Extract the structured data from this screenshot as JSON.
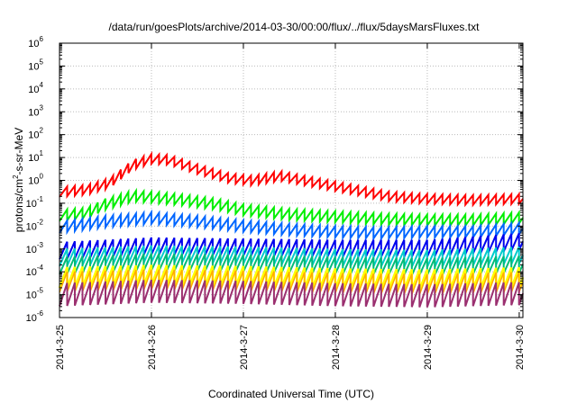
{
  "chart_data": {
    "type": "line",
    "title": "/data/run/goesPlots/archive/2014-03-30/00:00/flux/../flux/5daysMarsFluxes.txt",
    "xlabel": "Coordinated Universal Time (UTC)",
    "ylabel_main": "protons/cm",
    "ylabel_sup": "2",
    "ylabel_tail": "-s-sr-MeV",
    "y_scale": "log",
    "ylim_exp": [
      -6,
      6
    ],
    "y_ticks": [
      {
        "base": "10",
        "exp": "6",
        "value": 6
      },
      {
        "base": "10",
        "exp": "5",
        "value": 5
      },
      {
        "base": "10",
        "exp": "4",
        "value": 4
      },
      {
        "base": "10",
        "exp": "3",
        "value": 3
      },
      {
        "base": "10",
        "exp": "2",
        "value": 2
      },
      {
        "base": "10",
        "exp": "1",
        "value": 1
      },
      {
        "base": "10",
        "exp": "0",
        "value": 0
      },
      {
        "base": "10",
        "exp": "-1",
        "value": -1
      },
      {
        "base": "10",
        "exp": "-2",
        "value": -2
      },
      {
        "base": "10",
        "exp": "-3",
        "value": -3
      },
      {
        "base": "10",
        "exp": "-4",
        "value": -4
      },
      {
        "base": "10",
        "exp": "-5",
        "value": -5
      },
      {
        "base": "10",
        "exp": "-6",
        "value": -6
      }
    ],
    "x_range_days": [
      0,
      5.04
    ],
    "x_ticks": [
      {
        "label": "2014-3-25",
        "day": 0
      },
      {
        "label": "2014-3-26",
        "day": 1
      },
      {
        "label": "2014-3-27",
        "day": 2
      },
      {
        "label": "2014-3-28",
        "day": 3
      },
      {
        "label": "2014-3-29",
        "day": 4
      },
      {
        "label": "2014-3-30",
        "day": 5
      }
    ],
    "grid": true,
    "sawtooth_period_days": 0.0833,
    "series": [
      {
        "color": "#ff0000",
        "width": 2,
        "amp": 0.42,
        "anchors": [
          [
            0,
            -0.3
          ],
          [
            0.3,
            -0.2
          ],
          [
            0.55,
            0.1
          ],
          [
            0.8,
            0.9
          ],
          [
            1.0,
            1.15
          ],
          [
            1.2,
            1.1
          ],
          [
            1.5,
            0.7
          ],
          [
            1.85,
            0.3
          ],
          [
            2.1,
            0.2
          ],
          [
            2.4,
            0.4
          ],
          [
            2.8,
            0.1
          ],
          [
            3.2,
            -0.2
          ],
          [
            3.6,
            -0.5
          ],
          [
            4.0,
            -0.6
          ],
          [
            4.5,
            -0.65
          ],
          [
            5.04,
            -0.6
          ]
        ]
      },
      {
        "color": "#00ee00",
        "width": 2,
        "amp": 0.48,
        "anchors": [
          [
            0,
            -1.3
          ],
          [
            0.3,
            -1.2
          ],
          [
            0.5,
            -0.8
          ],
          [
            0.8,
            -0.45
          ],
          [
            1.0,
            -0.5
          ],
          [
            1.3,
            -0.6
          ],
          [
            1.7,
            -0.8
          ],
          [
            2.0,
            -1.05
          ],
          [
            2.5,
            -1.25
          ],
          [
            3.0,
            -1.35
          ],
          [
            3.5,
            -1.45
          ],
          [
            4.0,
            -1.5
          ],
          [
            4.5,
            -1.5
          ],
          [
            5.04,
            -1.4
          ]
        ]
      },
      {
        "color": "#0066ff",
        "width": 2,
        "amp": 0.5,
        "anchors": [
          [
            0,
            -1.8
          ],
          [
            0.5,
            -1.55
          ],
          [
            1.0,
            -1.4
          ],
          [
            1.5,
            -1.55
          ],
          [
            2.0,
            -1.75
          ],
          [
            2.5,
            -1.9
          ],
          [
            3.0,
            -2.0
          ],
          [
            3.5,
            -2.05
          ],
          [
            4.0,
            -2.0
          ],
          [
            4.5,
            -2.0
          ],
          [
            5.04,
            -1.85
          ]
        ]
      },
      {
        "color": "#0000ee",
        "width": 2,
        "amp": 0.75,
        "anchors": [
          [
            0,
            -2.7
          ],
          [
            1.0,
            -2.5
          ],
          [
            2.0,
            -2.55
          ],
          [
            3.0,
            -2.6
          ],
          [
            4.0,
            -2.6
          ],
          [
            5.04,
            -2.3
          ]
        ]
      },
      {
        "color": "#00cccc",
        "width": 2,
        "amp": 0.75,
        "anchors": [
          [
            0,
            -3.0
          ],
          [
            1.0,
            -2.85
          ],
          [
            2.0,
            -2.9
          ],
          [
            3.0,
            -3.0
          ],
          [
            4.0,
            -3.05
          ],
          [
            5.04,
            -2.9
          ]
        ]
      },
      {
        "color": "#00bb77",
        "width": 2,
        "amp": 0.75,
        "anchors": [
          [
            0,
            -3.35
          ],
          [
            1.0,
            -3.2
          ],
          [
            2.0,
            -3.25
          ],
          [
            3.0,
            -3.35
          ],
          [
            4.0,
            -3.4
          ],
          [
            5.04,
            -3.3
          ]
        ]
      },
      {
        "color": "#ffff00",
        "width": 2.5,
        "amp": 0.9,
        "anchors": [
          [
            0,
            -3.8
          ],
          [
            1.0,
            -3.7
          ],
          [
            2.0,
            -3.75
          ],
          [
            3.0,
            -3.85
          ],
          [
            4.0,
            -3.9
          ],
          [
            5.04,
            -3.8
          ]
        ]
      },
      {
        "color": "#ffaa00",
        "width": 1.5,
        "amp": 0.9,
        "anchors": [
          [
            0,
            -4.0
          ],
          [
            1.0,
            -3.9
          ],
          [
            2.0,
            -3.95
          ],
          [
            3.0,
            -4.05
          ],
          [
            4.0,
            -4.1
          ],
          [
            5.04,
            -4.0
          ]
        ]
      },
      {
        "color": "#9b3070",
        "width": 2,
        "amp": 1.0,
        "anchors": [
          [
            0,
            -4.5
          ],
          [
            1.0,
            -4.35
          ],
          [
            2.0,
            -4.4
          ],
          [
            3.0,
            -4.5
          ],
          [
            4.0,
            -4.55
          ],
          [
            5.04,
            -4.45
          ]
        ]
      }
    ]
  }
}
